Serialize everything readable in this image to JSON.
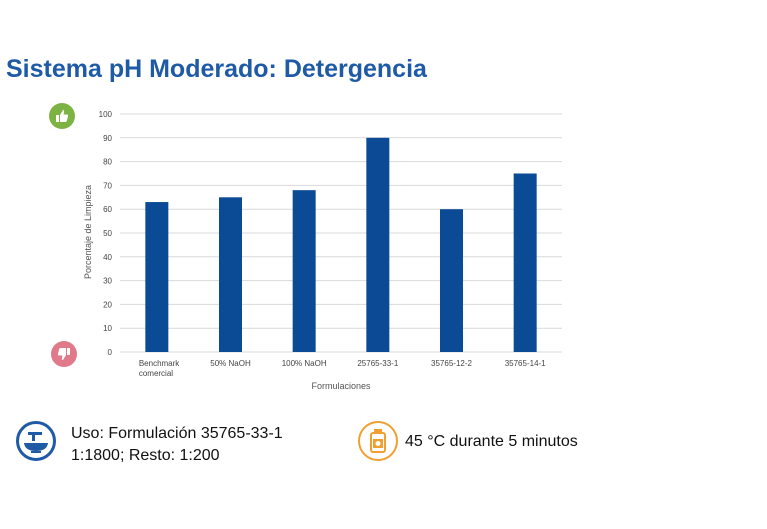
{
  "title": "Sistema pH Moderado: Detergencia",
  "chart_data": {
    "type": "bar",
    "categories": [
      "Benchmark comercial",
      "50% NaOH",
      "100% NaOH",
      "25765-33-1",
      "35765-12-2",
      "35765-14-1"
    ],
    "category_lines": [
      [
        "Benchmark",
        "comercial"
      ],
      [
        "50% NaOH"
      ],
      [
        "100% NaOH"
      ],
      [
        "25765-33-1"
      ],
      [
        "35765-12-2"
      ],
      [
        "35765-14-1"
      ]
    ],
    "values": [
      63,
      65,
      68,
      90,
      60,
      75
    ],
    "xlabel": "Formulaciones",
    "ylabel": "Porcentaje de Limpieza",
    "ylim": [
      0,
      100
    ],
    "yticks": [
      0,
      10,
      20,
      30,
      40,
      50,
      60,
      70,
      80,
      90,
      100
    ],
    "grid": true,
    "bar_color": "#0b4a94",
    "grid_color": "#d9d9d9"
  },
  "icons": {
    "good": "thumbs-up-icon",
    "bad": "thumbs-down-icon",
    "usage": "dosing-bowl-icon",
    "temperature": "heated-bottle-icon"
  },
  "footer": {
    "usage_line1": "Uso: Formulación 35765-33-1",
    "usage_line2": "1:1800; Resto: 1:200",
    "temperature": "45 °C durante 5 minutos"
  },
  "colors": {
    "title": "#1f5aa6",
    "good": "#7cb342",
    "bad": "#e07a8a",
    "accent_orange": "#f0a030"
  }
}
